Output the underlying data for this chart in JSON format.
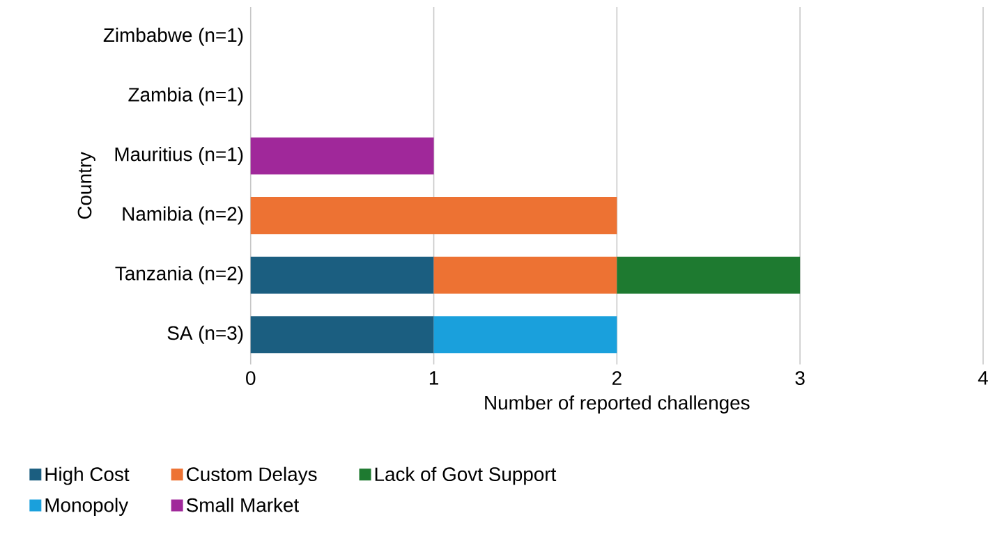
{
  "chart_data": {
    "type": "bar",
    "orientation": "horizontal",
    "stacked": true,
    "categories": [
      "Zimbabwe (n=1)",
      "Zambia (n=1)",
      "Mauritius (n=1)",
      "Namibia (n=2)",
      "Tanzania (n=2)",
      "SA (n=3)"
    ],
    "series": [
      {
        "name": "High Cost",
        "color": "#1b5e80",
        "values": [
          null,
          null,
          null,
          null,
          1,
          1
        ]
      },
      {
        "name": "Custom Delays",
        "color": "#ed7233",
        "values": [
          null,
          null,
          null,
          2,
          1,
          null
        ]
      },
      {
        "name": "Lack of Govt Support",
        "color": "#1e7a30",
        "values": [
          null,
          null,
          null,
          null,
          1,
          null
        ]
      },
      {
        "name": "Monopoly",
        "color": "#1aa0dc",
        "values": [
          null,
          null,
          null,
          null,
          null,
          1
        ]
      },
      {
        "name": "Small Market",
        "color": "#a0289a",
        "values": [
          null,
          null,
          1,
          null,
          null,
          null
        ]
      }
    ],
    "xlim": [
      0,
      4
    ],
    "xticks": [
      0,
      1,
      2,
      3,
      4
    ],
    "xlabel": "Number of reported challenges",
    "ylabel": "Country",
    "grid": "x",
    "legend": "bottom"
  }
}
